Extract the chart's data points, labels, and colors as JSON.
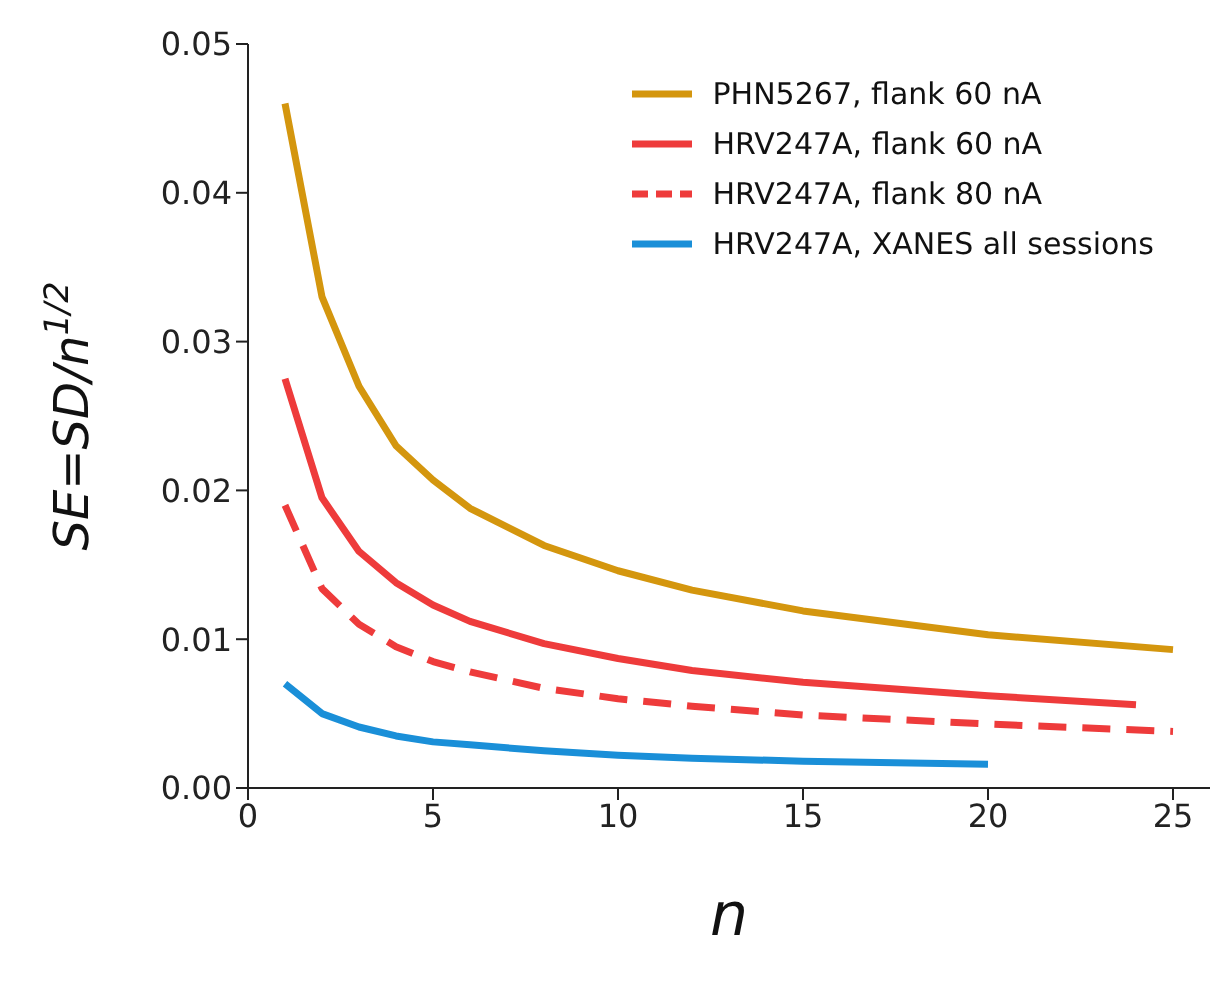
{
  "chart_data": {
    "type": "line",
    "xlabel": "n",
    "ylabel": "SE=SD/n$^{1/2}$",
    "xlim": [
      0,
      26
    ],
    "xticks": [
      0,
      5,
      10,
      15,
      20,
      25
    ],
    "ylim": [
      0,
      0.05
    ],
    "yticks": [
      {
        "value": 0,
        "label": "0.00"
      },
      {
        "value": 0.01,
        "label": "0.01"
      },
      {
        "value": 0.02,
        "label": "0.02"
      },
      {
        "value": 0.03,
        "label": "0.03"
      },
      {
        "value": 0.04,
        "label": "0.04"
      },
      {
        "value": 0.05,
        "label": "0.05"
      }
    ],
    "grid": false,
    "legend": "top right",
    "marker": "none",
    "series": [
      {
        "name": "PHN5267, flank 60 nA",
        "color": "#d4960e",
        "line_style": "solid",
        "x": [
          1,
          2,
          3,
          4,
          5,
          6,
          8,
          10,
          12,
          15,
          20,
          25
        ],
        "values": [
          0.046,
          0.033,
          0.027,
          0.023,
          0.0207,
          0.0188,
          0.0163,
          0.0146,
          0.0133,
          0.0119,
          0.0103,
          0.0093
        ]
      },
      {
        "name": "HRV247A, flank 60 nA",
        "color": "#ee3b3b",
        "line_style": "solid",
        "x": [
          1,
          2,
          3,
          4,
          5,
          6,
          8,
          10,
          12,
          15,
          20,
          24
        ],
        "values": [
          0.0275,
          0.0195,
          0.0159,
          0.0138,
          0.0123,
          0.0112,
          0.0097,
          0.0087,
          0.0079,
          0.0071,
          0.0062,
          0.0056
        ]
      },
      {
        "name": "HRV247A, flank 80 nA",
        "color": "#ee3b3b",
        "line_style": "dashed",
        "x": [
          1,
          2,
          3,
          4,
          5,
          6,
          8,
          10,
          12,
          15,
          20,
          25
        ],
        "values": [
          0.019,
          0.0134,
          0.011,
          0.0095,
          0.0085,
          0.0078,
          0.0067,
          0.006,
          0.0055,
          0.0049,
          0.0043,
          0.0038
        ]
      },
      {
        "name": "HRV247A, XANES all sessions",
        "color": "#1a8fd8",
        "line_style": "solid",
        "x": [
          1,
          2,
          3,
          4,
          5,
          6,
          8,
          10,
          12,
          15,
          20
        ],
        "values": [
          0.007,
          0.005,
          0.0041,
          0.0035,
          0.0031,
          0.0029,
          0.0025,
          0.0022,
          0.002,
          0.0018,
          0.0016
        ]
      }
    ]
  }
}
